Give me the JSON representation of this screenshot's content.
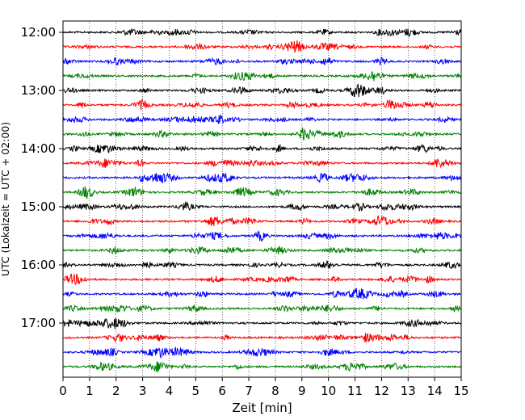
{
  "chart_data": {
    "type": "line",
    "chart_kind": "helicorder",
    "xlabel": "Zeit  [min]",
    "ylabel": "UTC (Lokalzeit = UTC + 02:00)",
    "xlim": [
      0,
      15
    ],
    "x_ticks": [
      "0",
      "1",
      "2",
      "3",
      "4",
      "5",
      "6",
      "7",
      "8",
      "9",
      "10",
      "11",
      "12",
      "13",
      "14",
      "15"
    ],
    "y_ticks": [
      "12:00",
      "13:00",
      "14:00",
      "15:00",
      "16:00",
      "17:00"
    ],
    "x_grid": "dotted vertical lines at each minute",
    "minutes_per_trace": 15,
    "trace_start_times_utc": [
      "12:00",
      "12:15",
      "12:30",
      "12:45",
      "13:00",
      "13:15",
      "13:30",
      "13:45",
      "14:00",
      "14:15",
      "14:30",
      "14:45",
      "15:00",
      "15:15",
      "15:30",
      "15:45",
      "16:00",
      "16:15",
      "16:30",
      "16:45",
      "17:00",
      "17:15",
      "17:30",
      "17:45"
    ],
    "trace_color_cycle": [
      "#000000",
      "#ff0000",
      "#0000ff",
      "#008000"
    ]
  }
}
